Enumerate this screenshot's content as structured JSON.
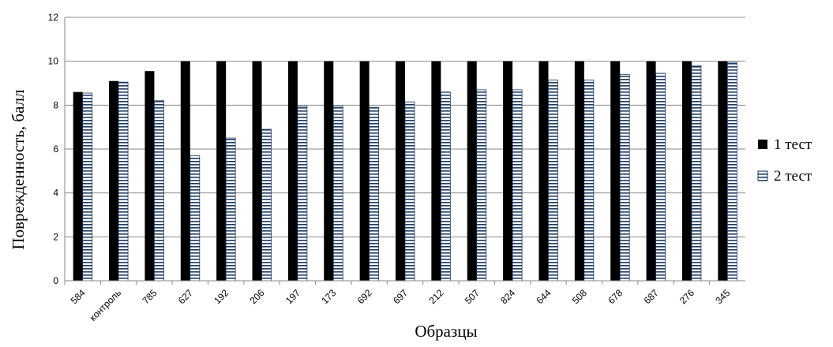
{
  "chart_data": {
    "type": "bar",
    "title": "",
    "xlabel": "Образцы",
    "ylabel": "Поврежденность, балл",
    "ylim": [
      0,
      12
    ],
    "yticks": [
      "0",
      "2",
      "4",
      "6",
      "8",
      "10",
      "12"
    ],
    "grid": true,
    "legend_position": "right",
    "categories": [
      "584",
      "контроль",
      "785",
      "627",
      "192",
      "206",
      "197",
      "173",
      "692",
      "697",
      "212",
      "507",
      "824",
      "644",
      "508",
      "678",
      "687",
      "276",
      "345"
    ],
    "series": [
      {
        "name": "1 тест",
        "fill": "solid",
        "color": "#000000",
        "values": [
          8.6,
          9.1,
          9.55,
          10,
          10,
          10,
          10,
          10,
          10,
          10,
          10,
          10,
          10,
          10,
          10,
          10,
          10,
          10,
          10
        ]
      },
      {
        "name": "2 тест",
        "fill": "horizontal-stripes",
        "color": "#1f3a5f",
        "values": [
          8.55,
          9.05,
          8.2,
          5.7,
          6.5,
          6.9,
          7.95,
          7.95,
          7.9,
          8.15,
          8.6,
          8.7,
          8.7,
          9.15,
          9.15,
          9.4,
          9.45,
          9.8,
          9.95
        ]
      }
    ]
  }
}
